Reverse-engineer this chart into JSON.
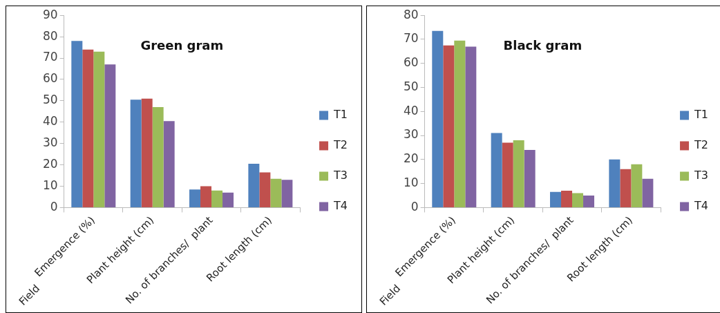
{
  "chart_data": [
    {
      "type": "bar",
      "title": "Green gram",
      "xlabel": "Field",
      "categories": [
        "Emergence (%)",
        "Plant height (cm)",
        "No. of branches/  plant",
        "Root length (cm)"
      ],
      "series": [
        {
          "name": "T1",
          "color": "#4f81bd",
          "values": [
            78,
            50.5,
            8.5,
            20.5
          ]
        },
        {
          "name": "T2",
          "color": "#c0504d",
          "values": [
            74,
            51,
            10,
            16.5
          ]
        },
        {
          "name": "T3",
          "color": "#9bbb59",
          "values": [
            73,
            47,
            8,
            13.5
          ]
        },
        {
          "name": "T4",
          "color": "#8064a2",
          "values": [
            67,
            40.5,
            7,
            13
          ]
        }
      ],
      "ylim": [
        0,
        90
      ],
      "yticks": [
        0,
        10,
        20,
        30,
        40,
        50,
        60,
        70,
        80,
        90
      ],
      "grid": false,
      "legend": "right"
    },
    {
      "type": "bar",
      "title": "Black gram",
      "xlabel": "Field",
      "categories": [
        "Emergence (%)",
        "Plant height (cm)",
        "No. of branches/  plant",
        "Root length (cm)"
      ],
      "series": [
        {
          "name": "T1",
          "color": "#4f81bd",
          "values": [
            73.5,
            31,
            6.5,
            20
          ]
        },
        {
          "name": "T2",
          "color": "#c0504d",
          "values": [
            67.5,
            27,
            7,
            16
          ]
        },
        {
          "name": "T3",
          "color": "#9bbb59",
          "values": [
            69.5,
            28,
            6,
            18
          ]
        },
        {
          "name": "T4",
          "color": "#8064a2",
          "values": [
            67,
            24,
            5,
            12
          ]
        }
      ],
      "ylim": [
        0,
        80
      ],
      "yticks": [
        0,
        10,
        20,
        30,
        40,
        50,
        60,
        70,
        80
      ],
      "grid": false,
      "legend": "right"
    }
  ]
}
